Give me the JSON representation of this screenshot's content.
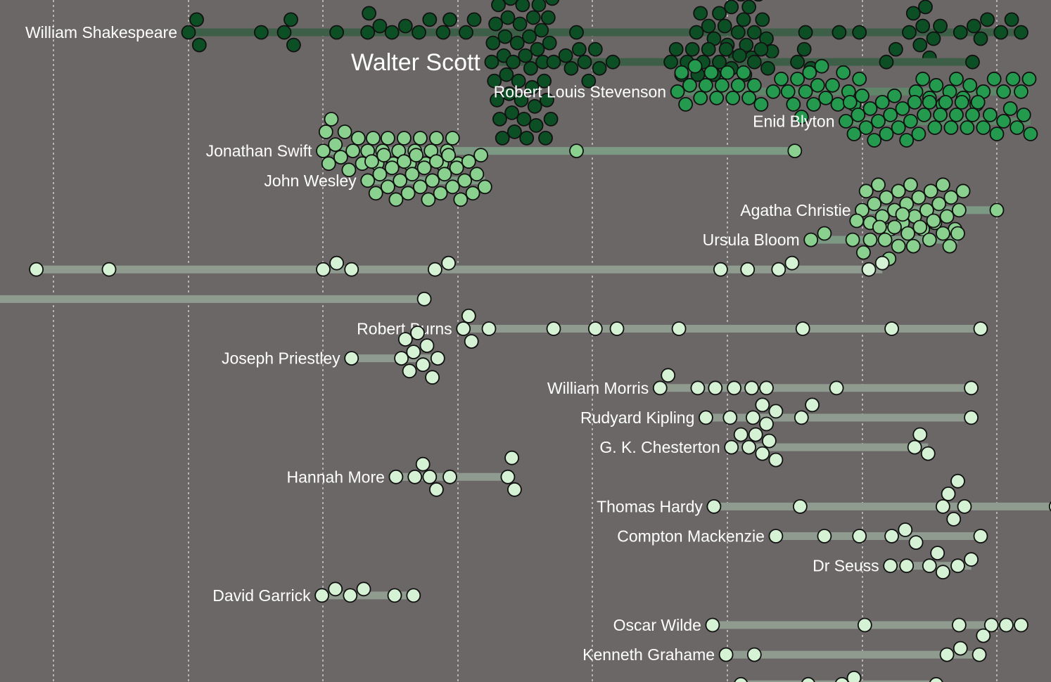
{
  "chart_data": {
    "type": "scatter",
    "title": "",
    "xlabel": "",
    "ylabel": "",
    "grid": "vertical dashed",
    "highlighted": "Walter Scott",
    "colors": {
      "background": "#6b6767",
      "gridline": "#e8e4e4",
      "highlight_label": "#8ee08e",
      "dot_stroke": "#111111",
      "bar_tiers": [
        "#3e5f47",
        "#60866a",
        "#7c9a83",
        "#8f9b8f"
      ],
      "dot_tiers": [
        "#0d4f24",
        "#239a4e",
        "#8ad08e",
        "#d6f2d4"
      ]
    },
    "series": [
      {
        "name": "William Shakespeare",
        "tier": 0,
        "values": [
          1600,
          1606,
          1608,
          1654,
          1671,
          1676,
          1678,
          1710,
          1733,
          1734,
          1742,
          1751,
          1761,
          1771,
          1779,
          1789,
          1794,
          1806,
          1812,
          1888,
          1977,
          1980,
          1986,
          1990,
          1994,
          1998,
          2000,
          2003,
          2006,
          2008,
          2010,
          2012,
          2014,
          2016,
          2018,
          2020,
          2023,
          2026,
          2029,
          2033,
          2058,
          2083,
          2098,
          2135,
          2138,
          2143,
          2145,
          2147,
          2150,
          2153,
          2158,
          2173,
          2183,
          2188,
          2193,
          2203,
          2211,
          2218
        ]
      },
      {
        "name": "Walter Scott",
        "tier": 0,
        "values": [
          1825,
          1826,
          1827,
          1828,
          1829,
          1830,
          1831,
          1832,
          1833,
          1834,
          1835,
          1836,
          1837,
          1838,
          1839,
          1840,
          1841,
          1842,
          1843,
          1844,
          1845,
          1846,
          1847,
          1848,
          1849,
          1850,
          1851,
          1852,
          1853,
          1854,
          1855,
          1856,
          1857,
          1858,
          1859,
          1860,
          1861,
          1862,
          1863,
          1864,
          1865,
          1866,
          1867,
          1868,
          1869,
          1870,
          1871,
          1880,
          1884,
          1890,
          1894,
          1897,
          1902,
          1905,
          1915,
          1958,
          1962,
          1966,
          1970,
          1974,
          1978,
          1982,
          1986,
          1990,
          1994,
          1999,
          2003,
          2009,
          2013,
          2020,
          2025,
          2030,
          2052,
          2057,
          2062,
          2118,
          2125,
          2182
        ]
      },
      {
        "name": "Robert Louis Stevenson",
        "tier": 1,
        "values": [
          1963,
          1966,
          1969,
          1972,
          1976,
          1980,
          1984,
          1988,
          1992,
          1996,
          2000,
          2004,
          2008,
          2012,
          2016,
          2020,
          2025,
          2034,
          2040,
          2045,
          2049,
          2052,
          2055,
          2058,
          2061,
          2064,
          2067,
          2070,
          2073,
          2078,
          2082,
          2086,
          2090,
          2094,
          2098,
          2140,
          2145,
          2150,
          2155,
          2160,
          2165,
          2170,
          2175,
          2180,
          2185,
          2190,
          2198,
          2205,
          2212,
          2218,
          2224
        ]
      },
      {
        "name": "Enid Blyton",
        "tier": 1,
        "values": [
          2088,
          2091,
          2094,
          2097,
          2100,
          2103,
          2106,
          2109,
          2112,
          2115,
          2118,
          2121,
          2124,
          2127,
          2130,
          2133,
          2136,
          2139,
          2142,
          2146,
          2150,
          2154,
          2158,
          2162,
          2166,
          2170,
          2174,
          2178,
          2182,
          2186,
          2190,
          2195,
          2200,
          2205,
          2210,
          2215,
          2220,
          2225
        ]
      },
      {
        "name": "Jonathan Swift",
        "tier": 2,
        "values": [
          1700,
          1702,
          1704,
          1706,
          1709,
          1713,
          1716,
          1719,
          1722,
          1726,
          1729,
          1733,
          1737,
          1740,
          1744,
          1748,
          1752,
          1756,
          1760,
          1764,
          1768,
          1772,
          1776,
          1780,
          1784,
          1788,
          1792,
          1796,
          1800,
          1888,
          2050
        ]
      },
      {
        "name": "John Wesley",
        "tier": 2,
        "values": [
          1733,
          1736,
          1739,
          1742,
          1745,
          1748,
          1751,
          1754,
          1757,
          1760,
          1763,
          1766,
          1769,
          1772,
          1775,
          1778,
          1781,
          1784,
          1787,
          1790,
          1793,
          1796,
          1799,
          1802,
          1805,
          1808,
          1811,
          1814,
          1817,
          1820
        ]
      },
      {
        "name": "Agatha Christie",
        "tier": 2,
        "values": [
          2100,
          2103,
          2106,
          2109,
          2112,
          2115,
          2118,
          2121,
          2124,
          2127,
          2130,
          2133,
          2136,
          2139,
          2142,
          2145,
          2148,
          2151,
          2154,
          2157,
          2160,
          2163,
          2166,
          2169,
          2172,
          2175,
          2200
        ]
      },
      {
        "name": "Ursula Bloom",
        "tier": 2,
        "values": [
          2062,
          2072,
          2093,
          2096,
          2101,
          2106,
          2113,
          2117,
          2120,
          2124,
          2127,
          2130,
          2134,
          2138,
          2143,
          2150,
          2153,
          2160,
          2165,
          2171
        ]
      },
      {
        "name": "",
        "tier": 3,
        "values": [
          1487,
          1541,
          1700,
          1710,
          1721,
          1783,
          1793,
          1995,
          2015,
          2038,
          2048,
          2105,
          2115
        ]
      },
      {
        "name": "",
        "tier": 3,
        "values": [
          1775
        ]
      },
      {
        "name": "Robert Burns",
        "tier": 3,
        "values": [
          1804,
          1808,
          1810,
          1823,
          1871,
          1902,
          1918,
          1964,
          2056,
          2122,
          2188
        ]
      },
      {
        "name": "Joseph Priestley",
        "tier": 3,
        "values": [
          1721,
          1758,
          1761,
          1764,
          1767,
          1770,
          1774,
          1777,
          1781,
          1785
        ]
      },
      {
        "name": "William Morris",
        "tier": 3,
        "values": [
          1950,
          1956,
          1978,
          1991,
          2005,
          2018,
          2029,
          2081,
          2181
        ]
      },
      {
        "name": "Rudyard Kipling",
        "tier": 3,
        "values": [
          1984,
          2002,
          2019,
          2026,
          2029,
          2036,
          2055,
          2063,
          2181
        ]
      },
      {
        "name": "G. K. Chesterton",
        "tier": 3,
        "values": [
          2003,
          2010,
          2016,
          2021,
          2026,
          2031,
          2036,
          2139,
          2143,
          2149
        ]
      },
      {
        "name": "Hannah More",
        "tier": 3,
        "values": [
          1754,
          1768,
          1774,
          1779,
          1784,
          1794,
          1837,
          1840,
          1842
        ]
      },
      {
        "name": "Thomas Hardy",
        "tier": 3,
        "values": [
          1990,
          2054,
          2160,
          2164,
          2168,
          2171,
          2176,
          2244
        ]
      },
      {
        "name": "Compton Mackenzie",
        "tier": 3,
        "values": [
          2036,
          2072,
          2098,
          2122,
          2132,
          2140,
          2188
        ]
      },
      {
        "name": "Dr Seuss",
        "tier": 3,
        "values": [
          2121,
          2133,
          2150,
          2156,
          2160,
          2171,
          2181
        ]
      },
      {
        "name": "David Garrick",
        "tier": 3,
        "values": [
          1699,
          1709,
          1720,
          1730,
          1753,
          1767
        ]
      },
      {
        "name": "Oscar Wilde",
        "tier": 3,
        "values": [
          1989,
          2102,
          2172,
          2196,
          2207,
          2218
        ]
      },
      {
        "name": "Kenneth Grahame",
        "tier": 3,
        "values": [
          1999,
          2020,
          2163,
          2173,
          2187,
          2190
        ]
      },
      {
        "name": "",
        "tier": 3,
        "values": [
          2010,
          2060,
          2085,
          2094,
          2155
        ]
      }
    ]
  }
}
